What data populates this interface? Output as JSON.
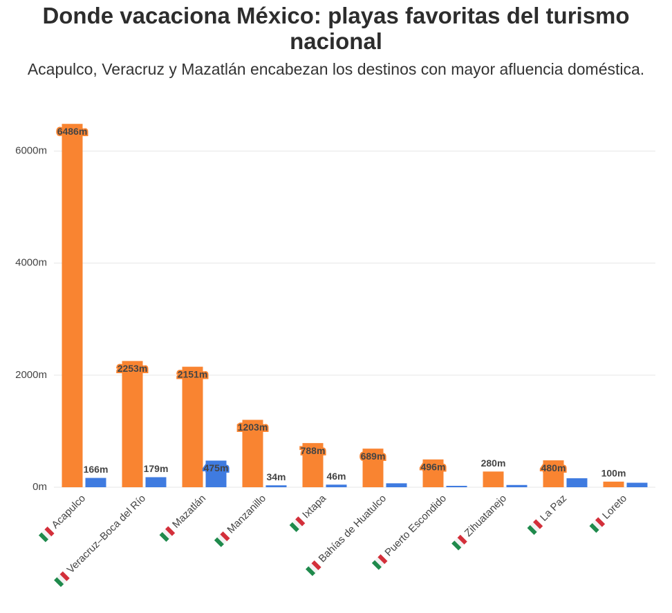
{
  "chart_data": {
    "type": "bar",
    "title": "Donde vacaciona México: playas favoritas del turismo nacional",
    "subtitle": "Acapulco, Veracruz y Mazatlán encabezan los destinos con mayor afluencia doméstica.",
    "categories": [
      "Acapulco",
      "Veracruz–Boca del Río",
      "Mazatlán",
      "Manzanillo",
      "Ixtapa",
      "Bahías de Huatulco",
      "Puerto Escondido",
      "Zihuatanejo",
      "La Paz",
      "Loreto"
    ],
    "series": [
      {
        "color": "#f98431",
        "values": [
          6486,
          2253,
          2151,
          1203,
          788,
          689,
          496,
          280,
          480,
          100
        ],
        "value_labels": [
          "6486m",
          "2253m",
          "2151m",
          "1203m",
          "788m",
          "689m",
          "496m",
          "280m",
          "480m",
          "100m"
        ]
      },
      {
        "color": "#3f7be0",
        "values": [
          166,
          179,
          475,
          34,
          46,
          70,
          25,
          40,
          160,
          80
        ],
        "value_labels": [
          "166m",
          "179m",
          "475m",
          "34m",
          "46m",
          null,
          null,
          null,
          null,
          null
        ]
      }
    ],
    "ylim": [
      0,
      6600
    ],
    "yticks": [
      {
        "value": 0,
        "label": "0m"
      },
      {
        "value": 2000,
        "label": "2000m"
      },
      {
        "value": 4000,
        "label": "4000m"
      },
      {
        "value": 6000,
        "label": "6000m"
      }
    ],
    "grid": true
  }
}
